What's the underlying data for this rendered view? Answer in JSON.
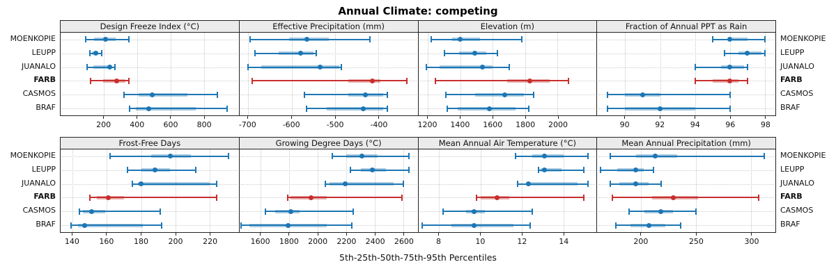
{
  "title": "Annual Climate: competing",
  "xlabel": "5th-25th-50th-75th-95th Percentiles",
  "sites": [
    {
      "name": "MOENKOPIE",
      "highlight": false
    },
    {
      "name": "LEUPP",
      "highlight": false
    },
    {
      "name": "JUANALO",
      "highlight": false
    },
    {
      "name": "FARB",
      "highlight": true
    },
    {
      "name": "CASMOS",
      "highlight": false
    },
    {
      "name": "BRAF",
      "highlight": false
    }
  ],
  "colors": {
    "normal": "#1d76b4",
    "highlight": "#c62f2d",
    "header_bg": "#ebebeb",
    "grid": "#c6c6c6",
    "border": "#222222"
  },
  "chart_data": [
    {
      "type": "scatter",
      "id": "design-freeze-index",
      "title": "Design Freeze Index (°C)",
      "statistic": "percentiles [p5,p25,p50,p75,p95]",
      "xmin": -60,
      "xmax": 1010,
      "ticks": [
        200,
        400,
        600,
        800
      ],
      "series": [
        {
          "site": "MOENKOPIE",
          "p": [
            90,
            140,
            210,
            270,
            350
          ]
        },
        {
          "site": "LEUPP",
          "p": [
            115,
            130,
            150,
            165,
            185
          ]
        },
        {
          "site": "JUANALO",
          "p": [
            100,
            135,
            235,
            250,
            265
          ]
        },
        {
          "site": "FARB",
          "p": [
            120,
            195,
            275,
            330,
            350
          ]
        },
        {
          "site": "CASMOS",
          "p": [
            320,
            410,
            490,
            700,
            880
          ]
        },
        {
          "site": "BRAF",
          "p": [
            355,
            390,
            470,
            750,
            940
          ]
        }
      ]
    },
    {
      "type": "scatter",
      "id": "effective-precipitation",
      "title": "Effective Precipitation (mm)",
      "statistic": "percentiles [p5,p25,p50,p75,p95]",
      "xmin": -720,
      "xmax": -310,
      "ticks": [
        -700,
        -600,
        -500,
        -400
      ],
      "series": [
        {
          "site": "MOENKOPIE",
          "p": [
            -695,
            -605,
            -565,
            -515,
            -420
          ]
        },
        {
          "site": "LEUPP",
          "p": [
            -685,
            -630,
            -580,
            -550,
            -543
          ]
        },
        {
          "site": "JUANALO",
          "p": [
            -700,
            -670,
            -535,
            -490,
            -485
          ]
        },
        {
          "site": "FARB",
          "p": [
            -690,
            -470,
            -415,
            -395,
            -335
          ]
        },
        {
          "site": "CASMOS",
          "p": [
            -570,
            -470,
            -430,
            -390,
            -380
          ]
        },
        {
          "site": "BRAF",
          "p": [
            -565,
            -520,
            -435,
            -390,
            -380
          ]
        }
      ]
    },
    {
      "type": "scatter",
      "id": "elevation",
      "title": "Elevation (m)",
      "statistic": "percentiles [p5,p25,p50,p75,p95]",
      "xmin": 1140,
      "xmax": 2240,
      "ticks": [
        1200,
        1400,
        1600,
        1800,
        2000
      ],
      "series": [
        {
          "site": "MOENKOPIE",
          "p": [
            1220,
            1350,
            1400,
            1520,
            1780
          ]
        },
        {
          "site": "LEUPP",
          "p": [
            1300,
            1390,
            1490,
            1560,
            1630
          ]
        },
        {
          "site": "JUANALO",
          "p": [
            1190,
            1270,
            1535,
            1600,
            1700
          ]
        },
        {
          "site": "FARB",
          "p": [
            1245,
            1690,
            1830,
            1950,
            2065
          ]
        },
        {
          "site": "CASMOS",
          "p": [
            1310,
            1490,
            1675,
            1790,
            1850
          ]
        },
        {
          "site": "BRAF",
          "p": [
            1320,
            1385,
            1580,
            1740,
            1820
          ]
        }
      ]
    },
    {
      "type": "scatter",
      "id": "fraction-annual-ppt-rain",
      "title": "Fraction of Annual PPT as Rain",
      "statistic": "percentiles [p5,p25,p50,p75,p95]",
      "xmin": 88.4,
      "xmax": 98.6,
      "ticks": [
        90,
        92,
        94,
        96,
        98
      ],
      "series": [
        {
          "site": "MOENKOPIE",
          "p": [
            95,
            96,
            96,
            97,
            98
          ]
        },
        {
          "site": "LEUPP",
          "p": [
            95.7,
            96.5,
            97,
            97.8,
            98
          ]
        },
        {
          "site": "JUANALO",
          "p": [
            94,
            95.5,
            96,
            96.8,
            97
          ]
        },
        {
          "site": "FARB",
          "p": [
            94,
            95,
            96,
            96.5,
            97
          ]
        },
        {
          "site": "CASMOS",
          "p": [
            89,
            90,
            91,
            92,
            96
          ]
        },
        {
          "site": "BRAF",
          "p": [
            89,
            90,
            92,
            94,
            96
          ]
        }
      ]
    },
    {
      "type": "scatter",
      "id": "frost-free-days",
      "title": "Frost-Free Days",
      "statistic": "percentiles [p5,p25,p50,p75,p95]",
      "xmin": 133,
      "xmax": 237,
      "ticks": [
        140,
        160,
        180,
        200,
        220
      ],
      "series": [
        {
          "site": "MOENKOPIE",
          "p": [
            162,
            186,
            197,
            209,
            231
          ]
        },
        {
          "site": "LEUPP",
          "p": [
            172,
            180,
            188,
            197,
            212
          ]
        },
        {
          "site": "JUANALO",
          "p": [
            175,
            178,
            180,
            220,
            224
          ]
        },
        {
          "site": "FARB",
          "p": [
            150,
            154,
            161,
            170,
            224
          ]
        },
        {
          "site": "CASMOS",
          "p": [
            144,
            146,
            151,
            159,
            191
          ]
        },
        {
          "site": "BRAF",
          "p": [
            139,
            143,
            147,
            181,
            192
          ]
        }
      ]
    },
    {
      "type": "scatter",
      "id": "growing-degree-days",
      "title": "Growing Degree Days (°C)",
      "statistic": "percentiles [p5,p25,p50,p75,p95]",
      "xmin": 1450,
      "xmax": 2700,
      "ticks": [
        1600,
        1800,
        2000,
        2200,
        2400,
        2600
      ],
      "series": [
        {
          "site": "MOENKOPIE",
          "p": [
            2100,
            2200,
            2310,
            2420,
            2640
          ]
        },
        {
          "site": "LEUPP",
          "p": [
            2230,
            2300,
            2380,
            2480,
            2640
          ]
        },
        {
          "site": "JUANALO",
          "p": [
            2050,
            2080,
            2190,
            2530,
            2600
          ]
        },
        {
          "site": "FARB",
          "p": [
            1790,
            1810,
            1950,
            2060,
            2590
          ]
        },
        {
          "site": "CASMOS",
          "p": [
            1630,
            1700,
            1810,
            1870,
            2250
          ]
        },
        {
          "site": "BRAF",
          "p": [
            1460,
            1520,
            1790,
            2060,
            2240
          ]
        }
      ]
    },
    {
      "type": "scatter",
      "id": "mean-annual-air-temperature",
      "title": "Mean Annual Air Temperature (°C)",
      "statistic": "percentiles [p5,p25,p50,p75,p95]",
      "xmin": 7.0,
      "xmax": 15.6,
      "ticks": [
        8,
        10,
        12,
        14
      ],
      "series": [
        {
          "site": "MOENKOPIE",
          "p": [
            11.7,
            12.5,
            13.1,
            14.0,
            15.2
          ]
        },
        {
          "site": "LEUPP",
          "p": [
            12.8,
            12.9,
            13.1,
            13.9,
            15.0
          ]
        },
        {
          "site": "JUANALO",
          "p": [
            11.8,
            12.2,
            12.3,
            14.7,
            15.2
          ]
        },
        {
          "site": "FARB",
          "p": [
            9.8,
            10.0,
            10.8,
            11.4,
            15.0
          ]
        },
        {
          "site": "CASMOS",
          "p": [
            8.2,
            9.3,
            9.7,
            10.2,
            12.5
          ]
        },
        {
          "site": "BRAF",
          "p": [
            7.2,
            8.6,
            9.7,
            11.6,
            12.4
          ]
        }
      ]
    },
    {
      "type": "scatter",
      "id": "mean-annual-precipitation",
      "title": "Mean Annual Precipitation (mm)",
      "statistic": "percentiles [p5,p25,p50,p75,p95]",
      "xmin": 160,
      "xmax": 322,
      "ticks": [
        200,
        250,
        300
      ],
      "series": [
        {
          "site": "MOENKOPIE",
          "p": [
            172,
            195,
            213,
            233,
            312
          ]
        },
        {
          "site": "LEUPP",
          "p": [
            163,
            178,
            195,
            202,
            211
          ]
        },
        {
          "site": "JUANALO",
          "p": [
            172,
            180,
            195,
            207,
            218
          ]
        },
        {
          "site": "FARB",
          "p": [
            174,
            210,
            229,
            252,
            307
          ]
        },
        {
          "site": "CASMOS",
          "p": [
            189,
            203,
            218,
            229,
            250
          ]
        },
        {
          "site": "BRAF",
          "p": [
            177,
            190,
            207,
            222,
            236
          ]
        }
      ]
    }
  ]
}
